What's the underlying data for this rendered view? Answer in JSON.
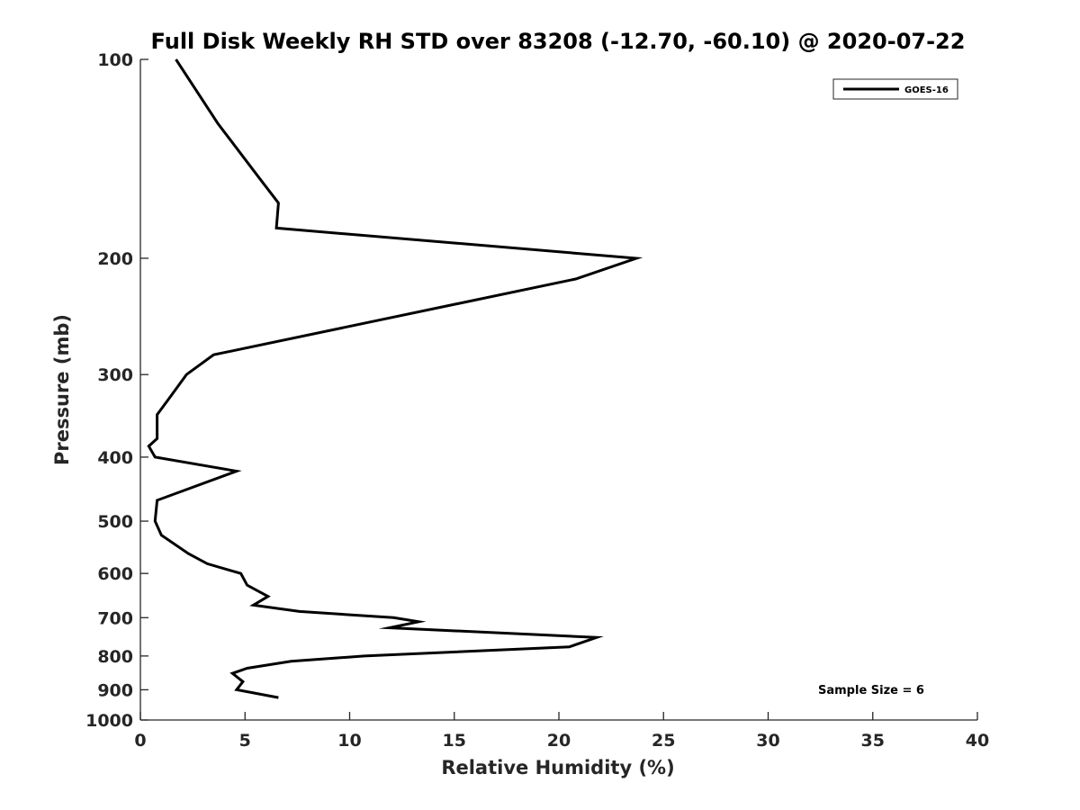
{
  "chart_data": {
    "type": "line",
    "title": "Full Disk Weekly RH STD over 83208 (-12.70, -60.10) @ 2020-07-22",
    "xlabel": "Relative Humidity (%)",
    "ylabel": "Pressure (mb)",
    "xlim": [
      0,
      40
    ],
    "ylim": [
      100,
      1000
    ],
    "y_scale": "log",
    "y_reversed": true,
    "xticks": [
      0,
      5,
      10,
      15,
      20,
      25,
      30,
      35,
      40
    ],
    "xtick_labels": [
      "0",
      "5",
      "10",
      "15",
      "20",
      "25",
      "30",
      "35",
      "40"
    ],
    "yticks": [
      100,
      200,
      300,
      400,
      500,
      600,
      700,
      800,
      900,
      1000
    ],
    "ytick_labels": [
      "100",
      "200",
      "300",
      "400",
      "500",
      "600",
      "700",
      "800",
      "900",
      "1000"
    ],
    "grid": false,
    "legend_position": "top-right",
    "series": [
      {
        "name": "GOES-16",
        "color": "#000000",
        "points": [
          {
            "x": 1.7,
            "p": 100
          },
          {
            "x": 3.7,
            "p": 125
          },
          {
            "x": 5.6,
            "p": 150
          },
          {
            "x": 6.6,
            "p": 165
          },
          {
            "x": 6.5,
            "p": 180
          },
          {
            "x": 23.7,
            "p": 200
          },
          {
            "x": 20.8,
            "p": 215
          },
          {
            "x": 3.5,
            "p": 280
          },
          {
            "x": 2.2,
            "p": 300
          },
          {
            "x": 1.4,
            "p": 325
          },
          {
            "x": 0.8,
            "p": 345
          },
          {
            "x": 0.8,
            "p": 375
          },
          {
            "x": 0.4,
            "p": 385
          },
          {
            "x": 0.7,
            "p": 400
          },
          {
            "x": 4.6,
            "p": 420
          },
          {
            "x": 0.8,
            "p": 465
          },
          {
            "x": 0.7,
            "p": 500
          },
          {
            "x": 1.0,
            "p": 525
          },
          {
            "x": 2.3,
            "p": 560
          },
          {
            "x": 3.2,
            "p": 580
          },
          {
            "x": 4.8,
            "p": 600
          },
          {
            "x": 5.1,
            "p": 625
          },
          {
            "x": 6.1,
            "p": 650
          },
          {
            "x": 5.4,
            "p": 670
          },
          {
            "x": 7.6,
            "p": 685
          },
          {
            "x": 12.1,
            "p": 700
          },
          {
            "x": 13.3,
            "p": 710
          },
          {
            "x": 11.9,
            "p": 725
          },
          {
            "x": 21.8,
            "p": 750
          },
          {
            "x": 20.5,
            "p": 775
          },
          {
            "x": 10.7,
            "p": 800
          },
          {
            "x": 7.2,
            "p": 815
          },
          {
            "x": 5.1,
            "p": 835
          },
          {
            "x": 4.4,
            "p": 850
          },
          {
            "x": 4.9,
            "p": 875
          },
          {
            "x": 4.6,
            "p": 900
          },
          {
            "x": 6.6,
            "p": 925
          }
        ]
      }
    ],
    "annotations": [
      "Sample Size = 6"
    ]
  }
}
